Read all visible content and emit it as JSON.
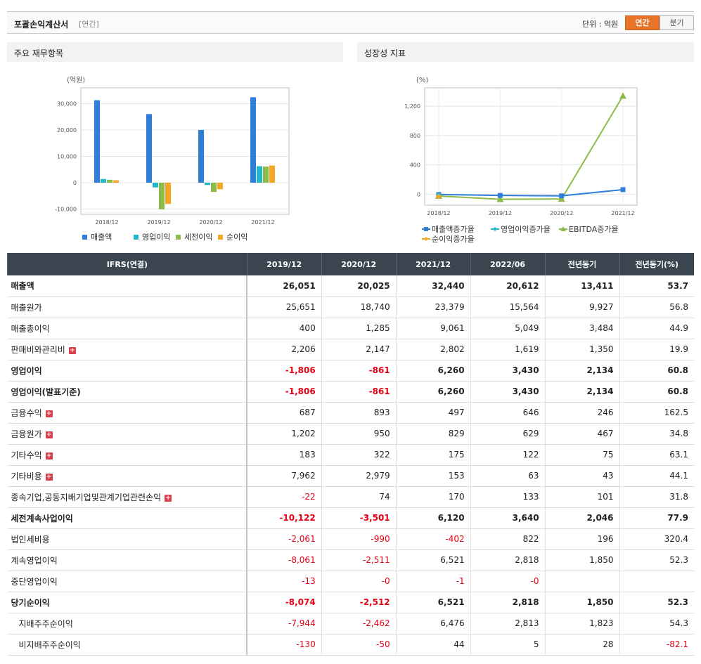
{
  "header": {
    "title": "포괄손익계산서",
    "period_tag": "[연간]",
    "unit_label": "단위 : 억원",
    "toggle_annual": "연간",
    "toggle_quarter": "분기"
  },
  "left_panel": {
    "title": "주요 재무항목"
  },
  "right_panel": {
    "title": "성장성 지표"
  },
  "chart_data": [
    {
      "type": "bar",
      "ylabel": "(억원)",
      "categories": [
        "2018/12",
        "2019/12",
        "2020/12",
        "2021/12"
      ],
      "ylim": [
        -12000,
        36000
      ],
      "yticks": [
        30000,
        20000,
        10000,
        0,
        -10000
      ],
      "ytick_labels": [
        "30,000",
        "20,000",
        "10,000",
        "0",
        "-10,000"
      ],
      "series": [
        {
          "name": "매출액",
          "color": "#2f7ed8",
          "values": [
            31300,
            26051,
            20025,
            32440
          ]
        },
        {
          "name": "영업이익",
          "color": "#1fb8c9",
          "values": [
            1400,
            -1806,
            -861,
            6260
          ]
        },
        {
          "name": "세전이익",
          "color": "#8dbb4a",
          "values": [
            1100,
            -10122,
            -3501,
            6120
          ]
        },
        {
          "name": "순이익",
          "color": "#f5a623",
          "values": [
            900,
            -8074,
            -2512,
            6521
          ]
        }
      ],
      "legend": "bottom",
      "grid": true
    },
    {
      "type": "line",
      "ylabel": "(%)",
      "categories": [
        "2018/12",
        "2019/12",
        "2020/12",
        "2021/12"
      ],
      "ylim": [
        -150,
        1450
      ],
      "yticks": [
        1200,
        800,
        400,
        0
      ],
      "ytick_labels": [
        "1,200",
        "800",
        "400",
        "0"
      ],
      "series": [
        {
          "name": "매출액증가율",
          "color": "#2f7ed8",
          "marker": "square",
          "values": [
            -5,
            -17,
            -23,
            62
          ]
        },
        {
          "name": "영업이익증가율",
          "color": "#1fb8c9",
          "marker": "diamond",
          "values": [
            -10,
            null,
            null,
            null
          ]
        },
        {
          "name": "EBITDA증가율",
          "color": "#8dbb4a",
          "marker": "triangle",
          "values": [
            -25,
            -70,
            -65,
            1340
          ]
        },
        {
          "name": "순이익증가율",
          "color": "#f5a623",
          "marker": "diamond",
          "values": [
            -30,
            null,
            null,
            null
          ]
        }
      ],
      "legend": "bottom",
      "grid": true
    }
  ],
  "table": {
    "head_label": "IFRS(연결)",
    "columns": [
      "2019/12",
      "2020/12",
      "2021/12",
      "2022/06",
      "전년동기",
      "전년동기(%)"
    ],
    "rows": [
      {
        "label": "매출액",
        "bold": true,
        "sep": false,
        "indent": false,
        "expand": false,
        "values": [
          "26,051",
          "20,025",
          "32,440",
          "20,612",
          "13,411",
          "53.7"
        ]
      },
      {
        "label": "매출원가",
        "bold": false,
        "sep": false,
        "indent": false,
        "expand": false,
        "values": [
          "25,651",
          "18,740",
          "23,379",
          "15,564",
          "9,927",
          "56.8"
        ]
      },
      {
        "label": "매출총이익",
        "bold": false,
        "sep": false,
        "indent": false,
        "expand": false,
        "values": [
          "400",
          "1,285",
          "9,061",
          "5,049",
          "3,484",
          "44.9"
        ]
      },
      {
        "label": "판매비와관리비",
        "bold": false,
        "sep": false,
        "indent": false,
        "expand": true,
        "values": [
          "2,206",
          "2,147",
          "2,802",
          "1,619",
          "1,350",
          "19.9"
        ]
      },
      {
        "label": "영업이익",
        "bold": true,
        "sep": true,
        "indent": false,
        "expand": false,
        "values": [
          "-1,806",
          "-861",
          "6,260",
          "3,430",
          "2,134",
          "60.8"
        ]
      },
      {
        "label": "영업이익(발표기준)",
        "bold": true,
        "sep": true,
        "indent": false,
        "expand": false,
        "values": [
          "-1,806",
          "-861",
          "6,260",
          "3,430",
          "2,134",
          "60.8"
        ]
      },
      {
        "label": "금융수익",
        "bold": false,
        "sep": true,
        "indent": false,
        "expand": true,
        "values": [
          "687",
          "893",
          "497",
          "646",
          "246",
          "162.5"
        ]
      },
      {
        "label": "금융원가",
        "bold": false,
        "sep": false,
        "indent": false,
        "expand": true,
        "values": [
          "1,202",
          "950",
          "829",
          "629",
          "467",
          "34.8"
        ]
      },
      {
        "label": "기타수익",
        "bold": false,
        "sep": false,
        "indent": false,
        "expand": true,
        "values": [
          "183",
          "322",
          "175",
          "122",
          "75",
          "63.1"
        ]
      },
      {
        "label": "기타비용",
        "bold": false,
        "sep": false,
        "indent": false,
        "expand": true,
        "values": [
          "7,962",
          "2,979",
          "153",
          "63",
          "43",
          "44.1"
        ]
      },
      {
        "label": "종속기업,공동지배기업및관계기업관련손익",
        "bold": false,
        "sep": false,
        "indent": false,
        "expand": true,
        "values": [
          "-22",
          "74",
          "170",
          "133",
          "101",
          "31.8"
        ]
      },
      {
        "label": "세전계속사업이익",
        "bold": true,
        "sep": true,
        "indent": false,
        "expand": false,
        "values": [
          "-10,122",
          "-3,501",
          "6,120",
          "3,640",
          "2,046",
          "77.9"
        ]
      },
      {
        "label": "법인세비용",
        "bold": false,
        "sep": true,
        "indent": false,
        "expand": false,
        "values": [
          "-2,061",
          "-990",
          "-402",
          "822",
          "196",
          "320.4"
        ]
      },
      {
        "label": "계속영업이익",
        "bold": false,
        "sep": false,
        "indent": false,
        "expand": false,
        "values": [
          "-8,061",
          "-2,511",
          "6,521",
          "2,818",
          "1,850",
          "52.3"
        ]
      },
      {
        "label": "중단영업이익",
        "bold": false,
        "sep": false,
        "indent": false,
        "expand": false,
        "values": [
          "-13",
          "-0",
          "-1",
          "-0",
          "",
          ""
        ]
      },
      {
        "label": "당기순이익",
        "bold": true,
        "sep": true,
        "indent": false,
        "expand": false,
        "values": [
          "-8,074",
          "-2,512",
          "6,521",
          "2,818",
          "1,850",
          "52.3"
        ]
      },
      {
        "label": "지배주주순이익",
        "bold": false,
        "sep": false,
        "indent": true,
        "expand": false,
        "values": [
          "-7,944",
          "-2,462",
          "6,476",
          "2,813",
          "1,823",
          "54.3"
        ]
      },
      {
        "label": "비지배주주순이익",
        "bold": false,
        "sep": false,
        "indent": true,
        "expand": false,
        "values": [
          "-130",
          "-50",
          "44",
          "5",
          "28",
          "-82.1"
        ]
      }
    ]
  }
}
